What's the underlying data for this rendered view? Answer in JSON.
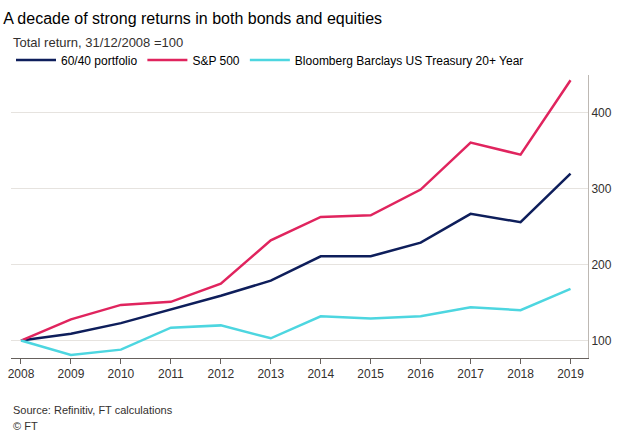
{
  "chart_data": {
    "type": "line",
    "title": "A decade of strong returns in both bonds and equities",
    "subtitle": "Total return, 31/12/2008 =100",
    "x": [
      2008,
      2009,
      2010,
      2011,
      2012,
      2013,
      2014,
      2015,
      2016,
      2017,
      2018,
      2019
    ],
    "xlim": [
      2007.8,
      2019.35
    ],
    "xticks": [
      2008,
      2009,
      2010,
      2011,
      2012,
      2013,
      2014,
      2015,
      2016,
      2017,
      2018,
      2019
    ],
    "ylim": [
      77,
      450
    ],
    "yticks": [
      100,
      200,
      300,
      400
    ],
    "grid": true,
    "legend": "top left",
    "series": [
      {
        "name": "60/40 portfolio",
        "color": "#0e1e5b",
        "values": [
          100,
          109,
          123,
          141,
          159,
          179,
          211,
          211,
          229,
          267,
          256,
          320
        ]
      },
      {
        "name": "S&P 500",
        "color": "#e0245e",
        "values": [
          100,
          128,
          147,
          151,
          175,
          232,
          263,
          265,
          299,
          361,
          345,
          443
        ]
      },
      {
        "name": "Bloomberg Barclays US Treasury 20+ Year",
        "color": "#4dd6e0",
        "values": [
          100,
          81,
          88,
          117,
          120,
          103,
          132,
          129,
          132,
          144,
          140,
          168
        ]
      }
    ],
    "annotations": [
      "Source: Refinitiv, FT calculations",
      "© FT"
    ]
  }
}
